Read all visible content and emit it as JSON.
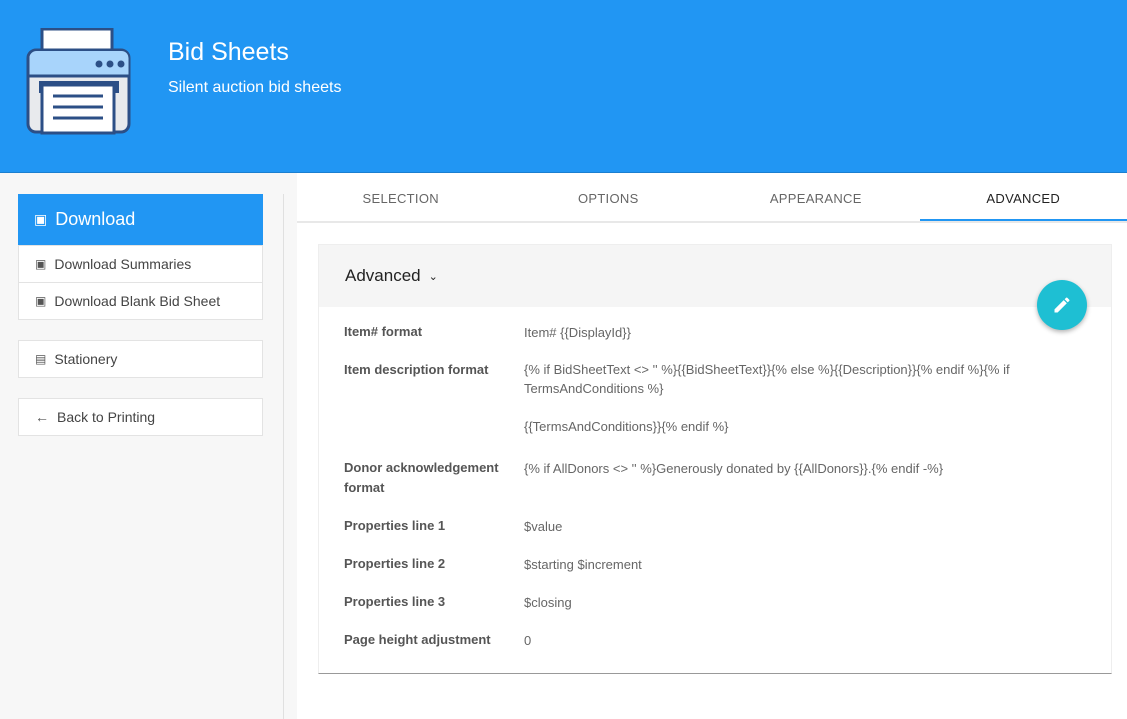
{
  "header": {
    "title": "Bid Sheets",
    "subtitle": "Silent auction bid sheets",
    "icon": "printer-icon"
  },
  "sidebar": {
    "download_label": "Download",
    "items": [
      {
        "label": "Download Summaries"
      },
      {
        "label": "Download Blank Bid Sheet"
      }
    ],
    "stationery": "Stationery",
    "back": "Back to Printing"
  },
  "tabs": [
    {
      "label": "SELECTION"
    },
    {
      "label": "OPTIONS"
    },
    {
      "label": "APPEARANCE"
    },
    {
      "label": "ADVANCED",
      "active": true
    }
  ],
  "card": {
    "title": "Advanced",
    "rows": [
      {
        "label": "Item# format",
        "value": "Item# {{DisplayId}}"
      },
      {
        "label": "Item description format",
        "value": "{% if BidSheetText <> '' %}{{BidSheetText}}{% else %}{{Description}}{% endif %}{% if TermsAndConditions %}\n\n{{TermsAndConditions}}{% endif %}"
      },
      {
        "label": "Donor acknowledgement format",
        "value": "{% if AllDonors <> '' %}Generously donated by {{AllDonors}}.{% endif -%}"
      },
      {
        "label": "Properties line 1",
        "value": "$value"
      },
      {
        "label": "Properties line 2",
        "value": "$starting $increment"
      },
      {
        "label": "Properties line 3",
        "value": "$closing"
      },
      {
        "label": "Page height adjustment",
        "value": "0"
      }
    ]
  },
  "colors": {
    "primary": "#2196f3",
    "fab": "#1ebfd3"
  }
}
